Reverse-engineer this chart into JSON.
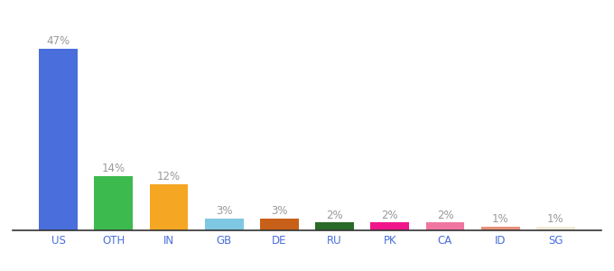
{
  "categories": [
    "US",
    "OTH",
    "IN",
    "GB",
    "DE",
    "RU",
    "PK",
    "CA",
    "ID",
    "SG"
  ],
  "values": [
    47,
    14,
    12,
    3,
    3,
    2,
    2,
    2,
    1,
    1
  ],
  "bar_colors": [
    "#4a6fdc",
    "#3dba4e",
    "#f5a623",
    "#7ec8e3",
    "#c8601a",
    "#276b27",
    "#f0168a",
    "#f075a0",
    "#e8927a",
    "#f0ead8"
  ],
  "labels": [
    "47%",
    "14%",
    "12%",
    "3%",
    "3%",
    "2%",
    "2%",
    "2%",
    "1%",
    "1%"
  ],
  "label_fontsize": 8.5,
  "tick_fontsize": 8.5,
  "label_color": "#999999",
  "tick_color": "#4a6fdc",
  "background_color": "#ffffff",
  "ylim": [
    0,
    54
  ],
  "bar_width": 0.7
}
